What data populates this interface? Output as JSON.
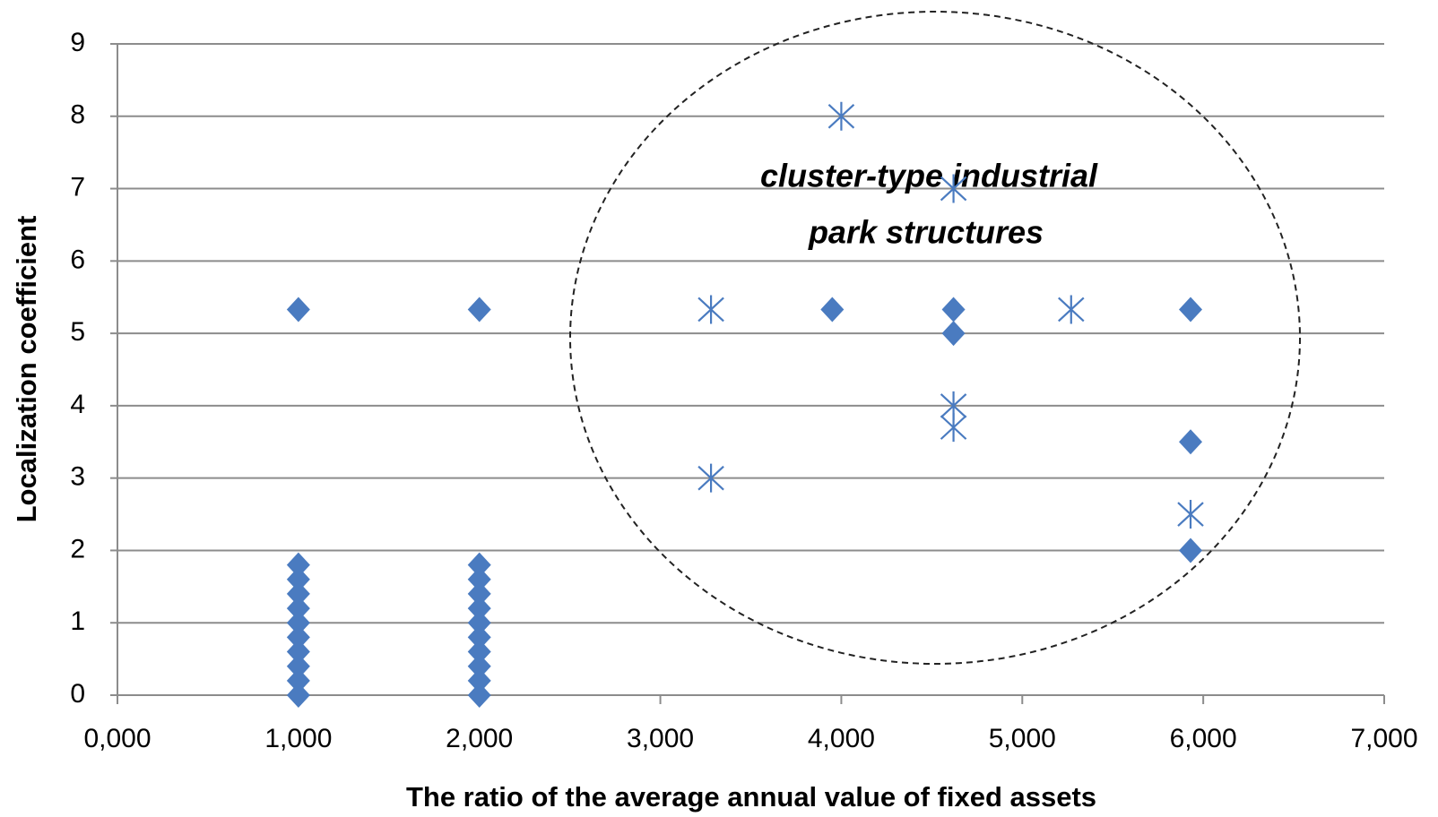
{
  "chart_data": {
    "type": "scatter",
    "xlabel": "The ratio of the average annual value of fixed assets",
    "ylabel": "Localization coefficient",
    "annotation": [
      "cluster-type industrial",
      "park structures"
    ],
    "xlim": [
      0,
      7000
    ],
    "ylim": [
      0,
      9
    ],
    "xticks": [
      {
        "value": 0,
        "label": "0,000"
      },
      {
        "value": 1000,
        "label": "1,000"
      },
      {
        "value": 2000,
        "label": "2,000"
      },
      {
        "value": 3000,
        "label": "3,000"
      },
      {
        "value": 4000,
        "label": "4,000"
      },
      {
        "value": 5000,
        "label": "5,000"
      },
      {
        "value": 6000,
        "label": "6,000"
      },
      {
        "value": 7000,
        "label": "7,000"
      }
    ],
    "yticks": [
      0,
      1,
      2,
      3,
      4,
      5,
      6,
      7,
      8,
      9
    ],
    "grid": true,
    "series": [
      {
        "color": "#4a7bc0",
        "marker": "diamond",
        "x": [
          1000,
          1000,
          1000,
          1000,
          1000,
          1000,
          1000,
          1000,
          1000,
          1000,
          1000,
          2000,
          2000,
          2000,
          2000,
          2000,
          2000,
          2000,
          2000,
          2000,
          2000,
          2000,
          3950,
          4620,
          4620,
          5930,
          5930,
          5930
        ],
        "values": [
          0,
          0.2,
          0.4,
          0.6,
          0.8,
          1.0,
          1.2,
          1.4,
          1.6,
          1.8,
          5.33,
          0,
          0.2,
          0.4,
          0.6,
          0.8,
          1.0,
          1.2,
          1.4,
          1.6,
          1.8,
          5.33,
          5.33,
          5.33,
          5.0,
          5.33,
          3.5,
          2.0
        ]
      },
      {
        "color": "#4a7bc0",
        "marker": "asterisk",
        "x": [
          4000,
          4620,
          3280,
          5270,
          4620,
          4620,
          3280,
          5930
        ],
        "values": [
          8,
          7,
          5.33,
          5.33,
          4.0,
          3.7,
          3.0,
          2.5
        ]
      }
    ]
  }
}
